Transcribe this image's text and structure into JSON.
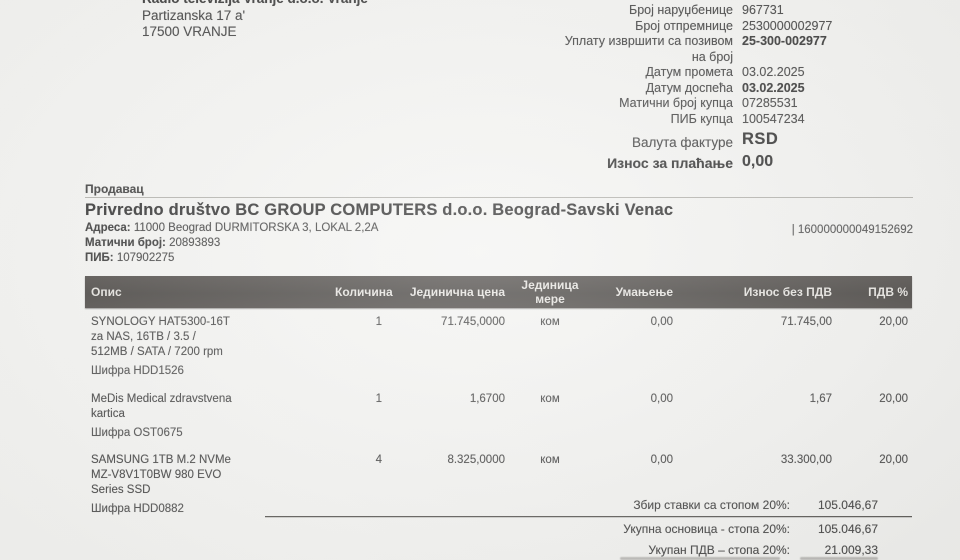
{
  "buyer": {
    "name": "Radio televizija Vranje d.o.o. Vranje",
    "street": "Partizanska 17 a'",
    "city": "17500 VRANJE"
  },
  "meta": {
    "rows": [
      {
        "label": "Број наруџбенице",
        "value": "967731"
      },
      {
        "label": "Број отпремнице",
        "value": "2530000002977"
      },
      {
        "label": "Уплату извршити са позивом\nна број",
        "value": "25-300-002977"
      },
      {
        "label": "Датум промета",
        "value": "03.02.2025"
      },
      {
        "label": "Датум доспећа",
        "value": "03.02.2025"
      },
      {
        "label": "Матични број купца",
        "value": "07285531"
      },
      {
        "label": "ПИБ купца",
        "value": "100547234"
      }
    ],
    "currency_label": "Валута фактуре",
    "currency_value": "RSD",
    "amount_due_label": "Износ за плаћање",
    "amount_due_value": "0,00"
  },
  "seller": {
    "section_label": "Продавац",
    "name": "Privredno društvo BC GROUP COMPUTERS d.o.o. Beograd-Savski Venac",
    "address_label": "Адреса:",
    "address_value": "11000 Beograd DURMITORSKA 3, LOKAL 2,2A",
    "account_number": "| 160000000049152692",
    "reg_label": "Матични број:",
    "reg_value": "20893893",
    "pib_label": "ПИБ:",
    "pib_value": "107902275"
  },
  "table": {
    "headers": {
      "opis": "Опис",
      "kolicina": "Количина",
      "jedinicna_cena": "Јединична цена",
      "jedinica_mere": "Јединица\nмере",
      "umanjenje": "Умањење",
      "iznos_bez_pdv": "Износ без ПДВ",
      "pdv_pct": "ПДВ %"
    },
    "rows": [
      {
        "desc_lines": [
          "SYNOLOGY HAT5300-16T",
          "za NAS, 16TB / 3.5 /",
          "512MB / SATA / 7200 rpm"
        ],
        "code": "Шифра HDD1526",
        "qty": "1",
        "unit_price": "71.745,0000",
        "unit": "ком",
        "discount": "0,00",
        "amount": "71.745,00",
        "vat": "20,00"
      },
      {
        "desc_lines": [
          "MeDis Medical zdravstvena",
          "kartica"
        ],
        "code": "Шифра OST0675",
        "qty": "1",
        "unit_price": "1,6700",
        "unit": "ком",
        "discount": "0,00",
        "amount": "1,67",
        "vat": "20,00"
      },
      {
        "desc_lines": [
          "SAMSUNG 1TB M.2 NVMe",
          "MZ-V8V1T0BW 980 EVO",
          "Series SSD"
        ],
        "code": "Шифра HDD0882",
        "qty": "4",
        "unit_price": "8.325,0000",
        "unit": "ком",
        "discount": "0,00",
        "amount": "33.300,00",
        "vat": "20,00"
      }
    ]
  },
  "totals": {
    "sum_label": "Збир ставки са стопом 20%:",
    "sum_value": "105.046,67",
    "base_label": "Укупна основица - стопа 20%:",
    "base_value": "105.046,67",
    "vat_label": "Укупан ПДВ – стопа 20%:",
    "vat_value": "21.009,33"
  }
}
